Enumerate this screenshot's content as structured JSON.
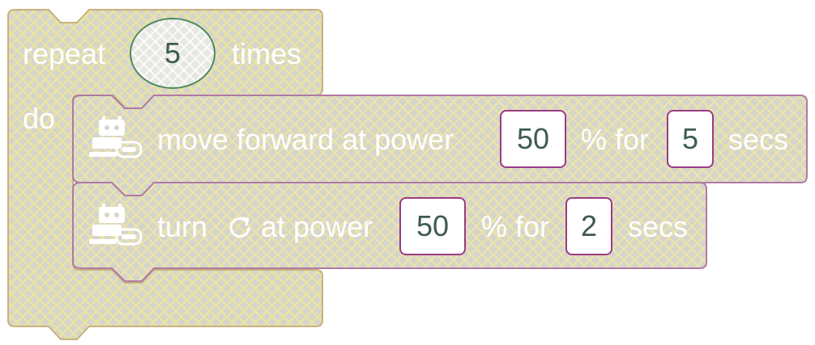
{
  "repeat_block": {
    "label_before": "repeat",
    "count": "5",
    "label_after": "times",
    "do_label": "do"
  },
  "move_block": {
    "icon": "robot-icon",
    "label": "move forward at power",
    "power": "50",
    "percent_for": "% for",
    "duration": "5",
    "unit": "secs"
  },
  "turn_block": {
    "icon": "robot-icon",
    "label_turn": "turn",
    "direction_icon": "rotate-clockwise-icon",
    "label_at_power": "at power",
    "power": "50",
    "percent_for": "% for",
    "duration": "2",
    "unit": "secs"
  },
  "colors": {
    "block_fill": "#d5d4c9",
    "repeat_outline": "#c9b27a",
    "motion_outline": "#b07aa6",
    "field_border": "#9b3a85",
    "field_text": "#3e5a55",
    "label_text": "#ffffff"
  }
}
